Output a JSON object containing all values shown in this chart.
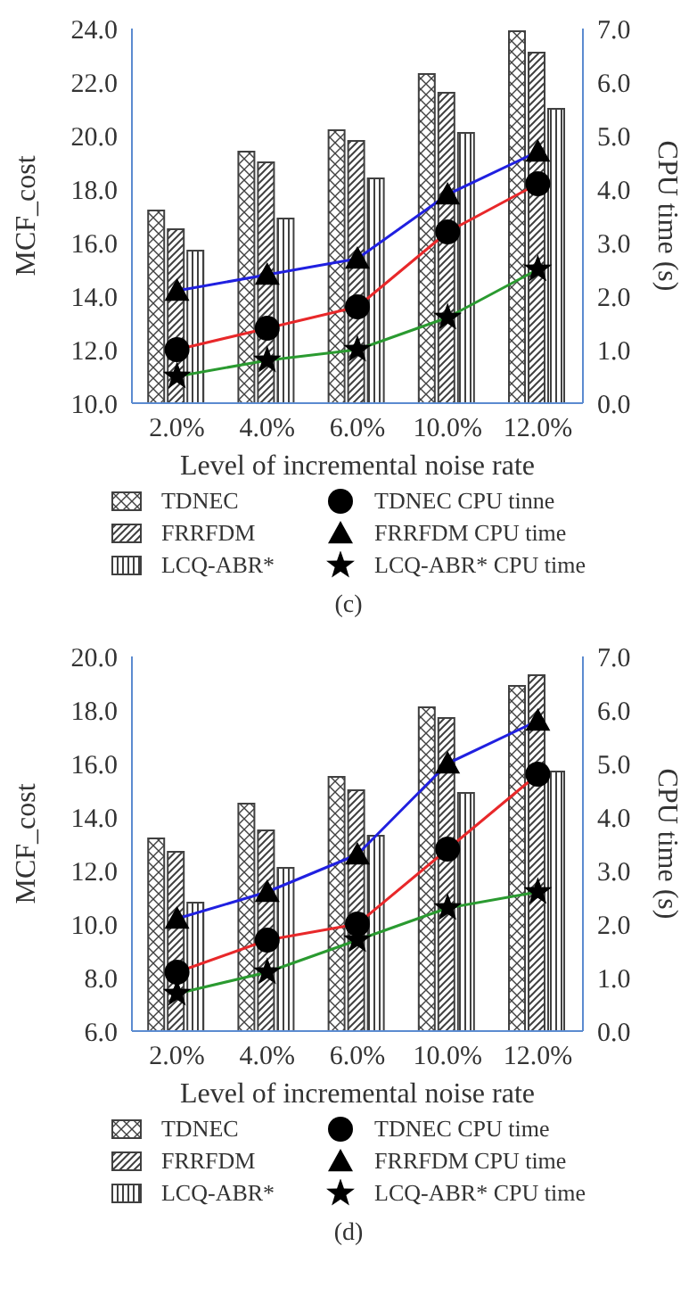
{
  "chart_data": [
    {
      "type": "bar",
      "title": "(c)",
      "xlabel": "Level of incremental noise rate",
      "ylabel": "MCF_cost",
      "y2label": "CPU time (s)",
      "categories": [
        "2.0%",
        "4.0%",
        "6.0%",
        "10.0%",
        "12.0%"
      ],
      "series": [
        {
          "name": "TDNEC",
          "color": "#404040",
          "values": [
            17.2,
            19.4,
            20.2,
            22.3,
            23.9
          ]
        },
        {
          "name": "FRRFDM",
          "color": "#404040",
          "values": [
            16.5,
            19.0,
            19.8,
            21.6,
            23.1
          ]
        },
        {
          "name": "LCQ-ABR*",
          "color": "#404040",
          "values": [
            15.7,
            16.9,
            18.4,
            20.1,
            21.0
          ]
        },
        {
          "name": "TDNEC CPU tinne",
          "type": "line",
          "axis": "y2",
          "color": "#e8282a",
          "marker": "circle",
          "values": [
            1.0,
            1.4,
            1.8,
            3.2,
            4.1
          ]
        },
        {
          "name": "FRRFDM  CPU time",
          "type": "line",
          "axis": "y2",
          "color": "#2020e0",
          "marker": "triangle",
          "values": [
            2.1,
            2.4,
            2.7,
            3.9,
            4.7
          ]
        },
        {
          "name": "LCQ-ABR* CPU time",
          "type": "line",
          "axis": "y2",
          "color": "#2a9a30",
          "marker": "star",
          "values": [
            0.5,
            0.8,
            1.0,
            1.6,
            2.5
          ]
        }
      ],
      "ylim": [
        10,
        24
      ],
      "yticks": [
        {
          "value": 10,
          "label": "10.0"
        },
        {
          "value": 12,
          "label": "12.0"
        },
        {
          "value": 14,
          "label": "14.0"
        },
        {
          "value": 16,
          "label": "16.0"
        },
        {
          "value": 18,
          "label": "18.0"
        },
        {
          "value": 20,
          "label": "20.0"
        },
        {
          "value": 22,
          "label": "22.0"
        },
        {
          "value": 24,
          "label": "24.0"
        }
      ],
      "y2lim": [
        0,
        7
      ],
      "y2ticks": [
        {
          "value": 0,
          "label": "0.0"
        },
        {
          "value": 1,
          "label": "1.0"
        },
        {
          "value": 2,
          "label": "2.0"
        },
        {
          "value": 3,
          "label": "3.0"
        },
        {
          "value": 4,
          "label": "4.0"
        },
        {
          "value": 5,
          "label": "5.0"
        },
        {
          "value": 6,
          "label": "6.0"
        },
        {
          "value": 7,
          "label": "7.0"
        }
      ],
      "grid": false,
      "legend": "bottom"
    },
    {
      "type": "bar",
      "title": "(d)",
      "xlabel": "Level of incremental noise rate",
      "ylabel": "MCF_cost",
      "y2label": "CPU time (s)",
      "categories": [
        "2.0%",
        "4.0%",
        "6.0%",
        "10.0%",
        "12.0%"
      ],
      "series": [
        {
          "name": "TDNEC",
          "color": "#404040",
          "values": [
            13.2,
            14.5,
            15.5,
            18.1,
            18.9
          ]
        },
        {
          "name": "FRRFDM",
          "color": "#404040",
          "values": [
            12.7,
            13.5,
            15.0,
            17.7,
            19.3
          ]
        },
        {
          "name": "LCQ-ABR*",
          "color": "#404040",
          "values": [
            10.8,
            12.1,
            13.3,
            14.9,
            15.7
          ]
        },
        {
          "name": "TDNEC CPU time",
          "type": "line",
          "axis": "y2",
          "color": "#e8282a",
          "marker": "circle",
          "values": [
            1.1,
            1.7,
            2.0,
            3.4,
            4.8
          ]
        },
        {
          "name": "FRRFDM CPU time",
          "type": "line",
          "axis": "y2",
          "color": "#2020e0",
          "marker": "triangle",
          "values": [
            2.1,
            2.6,
            3.3,
            5.0,
            5.8
          ]
        },
        {
          "name": "LCQ-ABR* CPU time",
          "type": "line",
          "axis": "y2",
          "color": "#2a9a30",
          "marker": "star",
          "values": [
            0.7,
            1.1,
            1.7,
            2.3,
            2.6
          ]
        }
      ],
      "ylim": [
        6,
        20
      ],
      "yticks": [
        {
          "value": 6,
          "label": "6.0"
        },
        {
          "value": 8,
          "label": "8.0"
        },
        {
          "value": 10,
          "label": "10.0"
        },
        {
          "value": 12,
          "label": "12.0"
        },
        {
          "value": 14,
          "label": "14.0"
        },
        {
          "value": 16,
          "label": "16.0"
        },
        {
          "value": 18,
          "label": "18.0"
        },
        {
          "value": 20,
          "label": "20.0"
        }
      ],
      "y2lim": [
        0,
        7
      ],
      "y2ticks": [
        {
          "value": 0,
          "label": "0.0"
        },
        {
          "value": 1,
          "label": "1.0"
        },
        {
          "value": 2,
          "label": "2.0"
        },
        {
          "value": 3,
          "label": "3.0"
        },
        {
          "value": 4,
          "label": "4.0"
        },
        {
          "value": 5,
          "label": "5.0"
        },
        {
          "value": 6,
          "label": "6.0"
        },
        {
          "value": 7,
          "label": "7.0"
        }
      ],
      "grid": false,
      "legend": "bottom"
    }
  ]
}
